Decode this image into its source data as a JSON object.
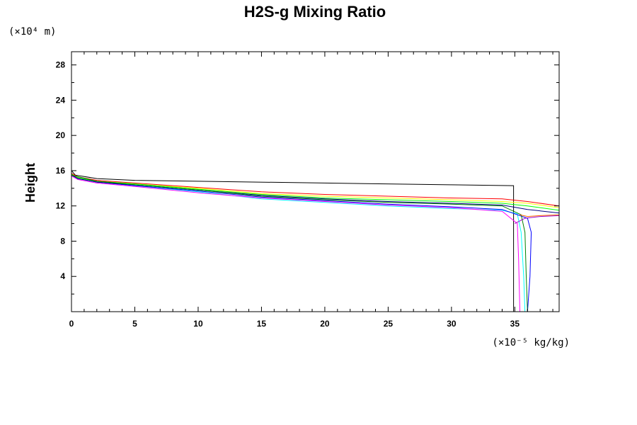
{
  "chart_data": {
    "type": "line",
    "title": "H2S-g Mixing Ratio",
    "ylabel": "Height",
    "y_unit": "(×10⁴ m)",
    "x_unit": "(×10⁻⁵ kg/kg)",
    "xlim": [
      0,
      38.5
    ],
    "ylim": [
      0,
      29.5
    ],
    "x_ticks": [
      0,
      5,
      10,
      15,
      20,
      25,
      30,
      35
    ],
    "y_ticks": [
      4,
      8,
      12,
      16,
      20,
      24,
      28
    ],
    "grid": false,
    "legend": "none",
    "series": [
      {
        "color": "#000000",
        "points": [
          [
            0,
            29.5
          ],
          [
            0,
            16
          ],
          [
            0.3,
            15.5
          ],
          [
            2,
            15.1
          ],
          [
            5,
            14.9
          ],
          [
            10,
            14.8
          ],
          [
            20,
            14.6
          ],
          [
            30,
            14.4
          ],
          [
            34.9,
            14.3
          ],
          [
            34.9,
            0
          ]
        ]
      },
      {
        "color": "#ff0000",
        "points": [
          [
            0,
            15.7
          ],
          [
            0.5,
            15.3
          ],
          [
            2,
            14.9
          ],
          [
            5,
            14.6
          ],
          [
            10,
            14.1
          ],
          [
            15,
            13.6
          ],
          [
            20,
            13.3
          ],
          [
            25,
            13.1
          ],
          [
            30,
            12.9
          ],
          [
            34,
            12.8
          ],
          [
            36,
            12.5
          ],
          [
            38.5,
            12.0
          ]
        ]
      },
      {
        "color": "#ffff00",
        "points": [
          [
            0,
            15.6
          ],
          [
            0.5,
            15.2
          ],
          [
            2,
            14.8
          ],
          [
            5,
            14.5
          ],
          [
            10,
            14.0
          ],
          [
            15,
            13.4
          ],
          [
            20,
            13.1
          ],
          [
            25,
            12.9
          ],
          [
            30,
            12.7
          ],
          [
            34,
            12.5
          ],
          [
            36,
            12.3
          ],
          [
            38.5,
            11.8
          ]
        ]
      },
      {
        "color": "#00ff00",
        "points": [
          [
            0,
            15.6
          ],
          [
            0.5,
            15.2
          ],
          [
            2,
            14.8
          ],
          [
            5,
            14.5
          ],
          [
            10,
            13.9
          ],
          [
            15,
            13.3
          ],
          [
            20,
            12.9
          ],
          [
            25,
            12.7
          ],
          [
            30,
            12.5
          ],
          [
            34,
            12.3
          ],
          [
            36,
            12.0
          ],
          [
            38.5,
            11.5
          ]
        ]
      },
      {
        "color": "#00ffff",
        "points": [
          [
            0,
            15.5
          ],
          [
            0.5,
            15.1
          ],
          [
            2,
            14.7
          ],
          [
            5,
            14.3
          ],
          [
            10,
            13.6
          ],
          [
            15,
            12.8
          ],
          [
            20,
            12.4
          ],
          [
            25,
            12.0
          ],
          [
            30,
            11.7
          ],
          [
            34,
            11.5
          ],
          [
            35.2,
            11.1
          ],
          [
            35.5,
            9
          ],
          [
            35.7,
            4
          ],
          [
            35.8,
            0
          ]
        ]
      },
      {
        "color": "#0000ff",
        "points": [
          [
            0,
            15.5
          ],
          [
            0.5,
            15.1
          ],
          [
            2,
            14.7
          ],
          [
            5,
            14.3
          ],
          [
            10,
            13.7
          ],
          [
            15,
            13.0
          ],
          [
            20,
            12.6
          ],
          [
            25,
            12.2
          ],
          [
            30,
            11.9
          ],
          [
            34,
            11.6
          ],
          [
            36,
            10.6
          ],
          [
            36.3,
            9
          ],
          [
            36.2,
            4
          ],
          [
            36.0,
            0
          ]
        ]
      },
      {
        "color": "#ff00ff",
        "points": [
          [
            0,
            15.4
          ],
          [
            0.5,
            15.0
          ],
          [
            2,
            14.6
          ],
          [
            5,
            14.2
          ],
          [
            10,
            13.5
          ],
          [
            15,
            12.9
          ],
          [
            20,
            12.5
          ],
          [
            25,
            12.1
          ],
          [
            30,
            11.8
          ],
          [
            34,
            11.4
          ],
          [
            35.2,
            10
          ],
          [
            35.3,
            6
          ],
          [
            35.4,
            0
          ]
        ]
      },
      {
        "color": "#000080",
        "points": [
          [
            0,
            15.5
          ],
          [
            0.5,
            15.1
          ],
          [
            2,
            14.7
          ],
          [
            5,
            14.4
          ],
          [
            10,
            13.8
          ],
          [
            15,
            13.2
          ],
          [
            20,
            12.8
          ],
          [
            25,
            12.5
          ],
          [
            30,
            12.3
          ],
          [
            34,
            12.1
          ],
          [
            36,
            11.6
          ],
          [
            38.5,
            11.2
          ]
        ]
      },
      {
        "color": "#008000",
        "points": [
          [
            0,
            15.5
          ],
          [
            2,
            14.8
          ],
          [
            5,
            14.4
          ],
          [
            10,
            13.8
          ],
          [
            15,
            13.1
          ],
          [
            20,
            12.7
          ],
          [
            25,
            12.4
          ],
          [
            30,
            12.2
          ],
          [
            34,
            12.0
          ],
          [
            35.5,
            11.0
          ],
          [
            35.8,
            9
          ],
          [
            35.9,
            4
          ],
          [
            36.0,
            0
          ]
        ]
      },
      {
        "color": "#ff6600",
        "points": [
          [
            35.4,
            11.0
          ],
          [
            36,
            10.8
          ],
          [
            37,
            10.9
          ],
          [
            38.5,
            11.0
          ]
        ]
      },
      {
        "color": "#9900cc",
        "points": [
          [
            35.0,
            10.0
          ],
          [
            35.8,
            10.6
          ],
          [
            37,
            10.8
          ],
          [
            38.5,
            10.9
          ]
        ]
      }
    ]
  }
}
